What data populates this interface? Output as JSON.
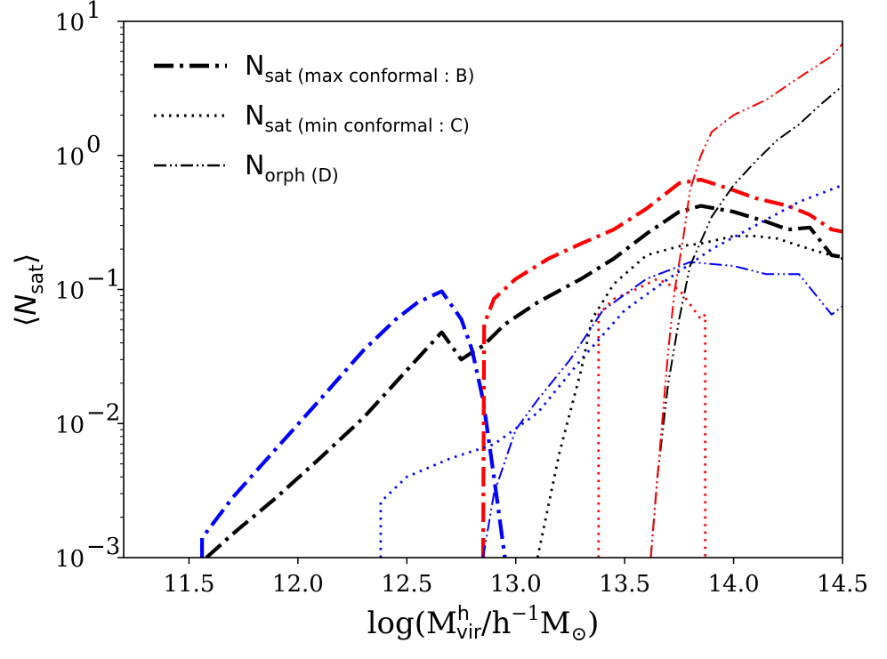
{
  "chart_data": {
    "type": "line",
    "title": "",
    "xlabel": {
      "main": "log(M",
      "sup": "h",
      "sub": "vir",
      "rest": "/h",
      "sup2": "−1",
      "unit": "M",
      "sun": "⊙",
      "close": ")"
    },
    "ylabel": {
      "open": "⟨",
      "main": "N",
      "sub": "sat",
      "close": "⟩"
    },
    "xlim": [
      11.2,
      14.5
    ],
    "ylim_log10": [
      -3,
      1
    ],
    "yscale": "log",
    "x_ticks": [
      11.5,
      12.0,
      12.5,
      13.0,
      13.5,
      14.0,
      14.5
    ],
    "x_tick_labels": [
      "11.5",
      "12.0",
      "12.5",
      "13.0",
      "13.5",
      "14.0",
      "14.5"
    ],
    "y_ticks_log10": [
      -3,
      -2,
      -1,
      0,
      1
    ],
    "y_tick_labels": [
      {
        "base": "10",
        "exp": "−3"
      },
      {
        "base": "10",
        "exp": "−2"
      },
      {
        "base": "10",
        "exp": "−1"
      },
      {
        "base": "10",
        "exp": "0"
      },
      {
        "base": "10",
        "exp": "1"
      }
    ],
    "legend": [
      {
        "style": "dashdot-bold",
        "main": "N",
        "sub": "sat (max conformal : B)"
      },
      {
        "style": "dotted",
        "main": "N",
        "sub": "sat (min conformal : C)"
      },
      {
        "style": "dashdotdot",
        "main": "N",
        "sub": "orph (D)"
      }
    ],
    "legend_position": "top-left",
    "series": [
      {
        "name": "black max conformal B",
        "color": "#000000",
        "style": "dashdot-bold",
        "x": [
          11.58,
          11.7,
          11.9,
          12.1,
          12.3,
          12.5,
          12.66,
          12.75,
          12.8,
          12.85,
          12.95,
          13.1,
          13.3,
          13.45,
          13.6,
          13.75,
          13.85,
          14.0,
          14.15,
          14.25,
          14.35,
          14.45,
          14.5
        ],
        "y": [
          0.001,
          0.0015,
          0.0028,
          0.0055,
          0.011,
          0.025,
          0.048,
          0.03,
          0.034,
          0.038,
          0.055,
          0.08,
          0.12,
          0.17,
          0.26,
          0.38,
          0.42,
          0.38,
          0.32,
          0.28,
          0.29,
          0.18,
          0.175
        ]
      },
      {
        "name": "blue max conformal B",
        "color": "#0000ff",
        "style": "dashdot-bold",
        "x": [
          11.56,
          11.56,
          11.7,
          11.9,
          12.1,
          12.3,
          12.45,
          12.55,
          12.66,
          12.75,
          12.8,
          12.85,
          12.9,
          12.95
        ],
        "y": [
          0.001,
          0.0014,
          0.0028,
          0.0065,
          0.015,
          0.035,
          0.06,
          0.08,
          0.097,
          0.06,
          0.035,
          0.015,
          0.004,
          0.001
        ]
      },
      {
        "name": "red max conformal B",
        "color": "#ff0000",
        "style": "dashdot-bold",
        "x": [
          12.85,
          12.855,
          12.9,
          13.0,
          13.15,
          13.3,
          13.45,
          13.6,
          13.75,
          13.85,
          14.0,
          14.1,
          14.25,
          14.35,
          14.45,
          14.5
        ],
        "y": [
          0.001,
          0.055,
          0.085,
          0.12,
          0.17,
          0.22,
          0.28,
          0.4,
          0.62,
          0.66,
          0.55,
          0.48,
          0.42,
          0.36,
          0.28,
          0.27
        ]
      },
      {
        "name": "blue min conformal C",
        "color": "#0000ff",
        "style": "dotted",
        "x": [
          12.38,
          12.38,
          12.5,
          12.7,
          12.9,
          13.1,
          13.3,
          13.5,
          13.7,
          13.9,
          14.1,
          14.3,
          14.5
        ],
        "y": [
          0.001,
          0.0026,
          0.004,
          0.0055,
          0.007,
          0.012,
          0.03,
          0.07,
          0.12,
          0.2,
          0.3,
          0.45,
          0.6
        ]
      },
      {
        "name": "black min conformal C",
        "color": "#000000",
        "style": "dotted",
        "x": [
          13.1,
          13.2,
          13.3,
          13.35,
          13.45,
          13.6,
          13.75,
          13.85,
          14.0,
          14.1,
          14.2,
          14.35,
          14.5
        ],
        "y": [
          0.001,
          0.006,
          0.025,
          0.06,
          0.11,
          0.18,
          0.21,
          0.22,
          0.25,
          0.25,
          0.24,
          0.2,
          0.17
        ]
      },
      {
        "name": "red min conformal C",
        "color": "#ff0000",
        "style": "dotted",
        "x": [
          13.38,
          13.38,
          13.45,
          13.55,
          13.65,
          13.75,
          13.85,
          13.87,
          13.87
        ],
        "y": [
          0.001,
          0.065,
          0.085,
          0.1,
          0.12,
          0.1,
          0.06,
          0.065,
          0.001
        ]
      },
      {
        "name": "blue orphans D",
        "color": "#0000ff",
        "style": "dashdotdot",
        "x": [
          12.85,
          12.9,
          13.0,
          13.1,
          13.25,
          13.4,
          13.6,
          13.8,
          14.0,
          14.15,
          14.3,
          14.45,
          14.5
        ],
        "y": [
          0.001,
          0.003,
          0.009,
          0.015,
          0.03,
          0.07,
          0.12,
          0.16,
          0.15,
          0.13,
          0.13,
          0.065,
          0.075
        ]
      },
      {
        "name": "black orphans D",
        "color": "#000000",
        "style": "dashdotdot",
        "x": [
          13.62,
          13.65,
          13.7,
          13.75,
          13.8,
          13.9,
          14.0,
          14.1,
          14.2,
          14.3,
          14.4,
          14.5
        ],
        "y": [
          0.001,
          0.004,
          0.02,
          0.06,
          0.15,
          0.35,
          0.6,
          0.9,
          1.3,
          1.7,
          2.4,
          3.3
        ]
      },
      {
        "name": "red orphans D",
        "color": "#ff0000",
        "style": "dashdotdot",
        "x": [
          13.62,
          13.66,
          13.7,
          13.73,
          13.77,
          13.8,
          13.85,
          13.9,
          14.0,
          14.15,
          14.3,
          14.45,
          14.5
        ],
        "y": [
          0.001,
          0.006,
          0.035,
          0.1,
          0.25,
          0.55,
          1.0,
          1.5,
          2.0,
          2.6,
          3.8,
          5.5,
          6.8
        ]
      }
    ]
  }
}
